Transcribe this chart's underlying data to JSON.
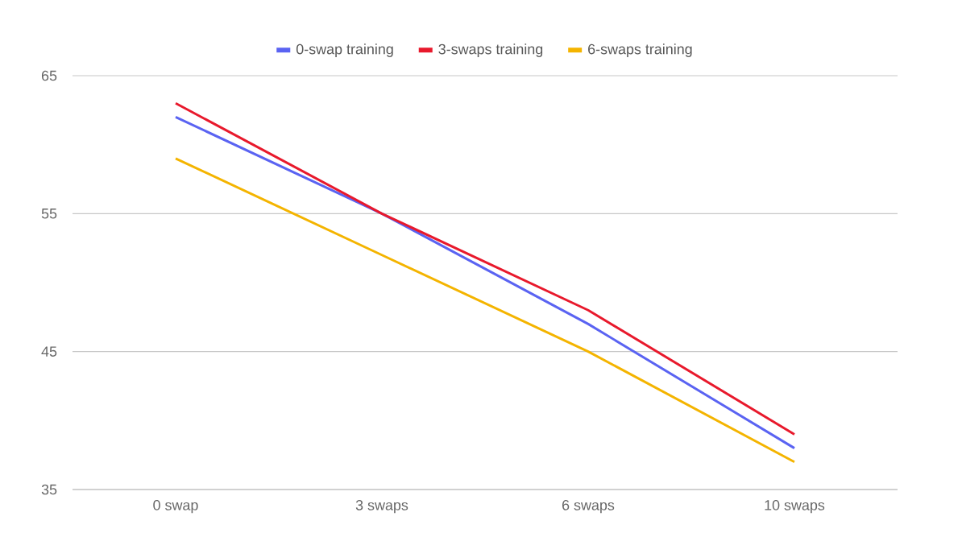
{
  "chart_data": {
    "type": "line",
    "categories": [
      "0 swap",
      "3 swaps",
      "6 swaps",
      "10 swaps"
    ],
    "series": [
      {
        "name": "0-swap training",
        "color": "#5a63f2",
        "values": [
          62,
          55,
          47,
          38
        ]
      },
      {
        "name": "3-swaps training",
        "color": "#e8192c",
        "values": [
          63,
          55,
          48,
          39
        ]
      },
      {
        "name": "6-swaps training",
        "color": "#f4b400",
        "values": [
          59,
          52,
          45,
          37
        ]
      }
    ],
    "ylim": [
      35,
      65
    ],
    "yticks": [
      35,
      45,
      55,
      65
    ],
    "grid": "y",
    "legend": "top",
    "marker": "none",
    "line_style": "solid"
  }
}
